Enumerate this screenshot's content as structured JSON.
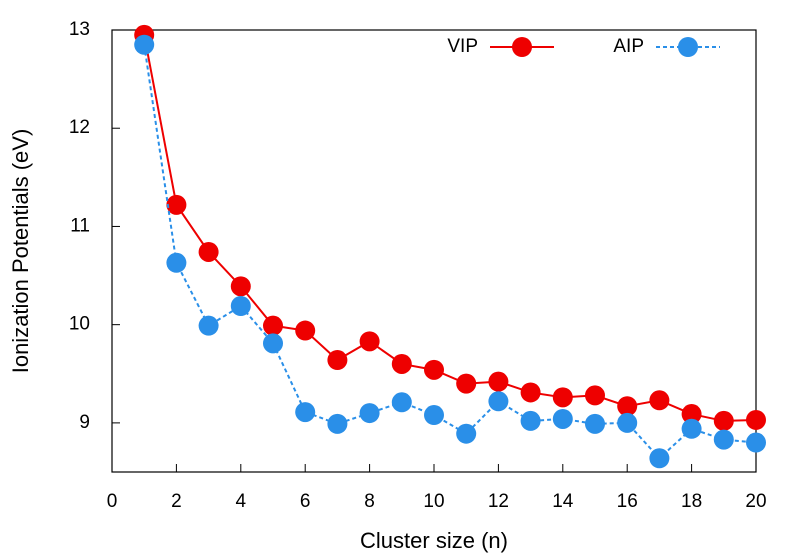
{
  "chart_data": {
    "type": "line",
    "x_label": "Cluster size (n)",
    "y_label": "Ionization Potentials (eV)",
    "x": [
      1,
      2,
      3,
      4,
      5,
      6,
      7,
      8,
      9,
      10,
      11,
      12,
      13,
      14,
      15,
      16,
      17,
      18,
      19,
      20
    ],
    "series": [
      {
        "name": "VIP",
        "color": "#ee0000",
        "linestyle": "solid",
        "values": [
          12.95,
          11.22,
          10.74,
          10.39,
          9.99,
          9.94,
          9.64,
          9.83,
          9.6,
          9.54,
          9.4,
          9.42,
          9.31,
          9.26,
          9.28,
          9.17,
          9.23,
          9.09,
          9.02,
          9.03
        ]
      },
      {
        "name": "AIP",
        "color": "#2a8fe8",
        "linestyle": "dashed",
        "values": [
          12.85,
          10.63,
          9.99,
          10.19,
          9.81,
          9.11,
          8.99,
          9.1,
          9.21,
          9.08,
          8.89,
          9.22,
          9.02,
          9.04,
          8.99,
          9.0,
          8.64,
          8.94,
          8.83,
          8.8
        ]
      }
    ],
    "xlim": [
      0,
      20
    ],
    "xticks": [
      0,
      2,
      4,
      6,
      8,
      10,
      12,
      14,
      16,
      18,
      20
    ],
    "ylim": [
      8.5,
      13
    ],
    "yticks": [
      9,
      10,
      11,
      12,
      13
    ],
    "legend": "upper right"
  }
}
